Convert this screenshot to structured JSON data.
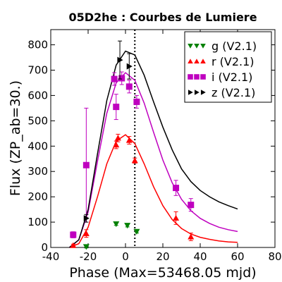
{
  "chart_data": {
    "type": "scatter",
    "title": "05D2he : Courbes de Lumiere",
    "xlabel": "Phase (Max=53468.05 mjd)",
    "ylabel": "Flux (ZP_ab=30.)",
    "xlim": [
      -40,
      80
    ],
    "ylim": [
      0,
      860
    ],
    "xticks": [
      "-40",
      "-20",
      "0",
      "20",
      "40",
      "60",
      "80"
    ],
    "yticks": [
      "0",
      "100",
      "200",
      "300",
      "400",
      "500",
      "600",
      "700",
      "800"
    ],
    "xtick_values": [
      -40,
      -20,
      0,
      20,
      40,
      60,
      80
    ],
    "ytick_values": [
      0,
      100,
      200,
      300,
      400,
      500,
      600,
      700,
      800
    ],
    "max_phase_line": 5,
    "legend_position": "top-right",
    "series": [
      {
        "name": "g (V2.1)",
        "legend_label": "g (V2.1)",
        "color": "#008000",
        "marker": "triangle-down",
        "points": [
          {
            "x": -21,
            "y": 3,
            "err": 5
          },
          {
            "x": -5,
            "y": 93,
            "err": 6
          },
          {
            "x": 1,
            "y": 87,
            "err": 6
          },
          {
            "x": 6,
            "y": 63,
            "err": 6
          }
        ],
        "curve": []
      },
      {
        "name": "r (V2.1)",
        "legend_label": "r (V2.1)",
        "color": "#ff0000",
        "marker": "triangle-up",
        "points": [
          {
            "x": -28,
            "y": 8,
            "err": 5
          },
          {
            "x": -21,
            "y": 55,
            "err": 15
          },
          {
            "x": -5,
            "y": 405,
            "err": 15
          },
          {
            "x": -4,
            "y": 432,
            "err": 15
          },
          {
            "x": 2,
            "y": 423,
            "err": 15
          },
          {
            "x": 5,
            "y": 343,
            "err": 10
          },
          {
            "x": 27,
            "y": 116,
            "err": 25
          },
          {
            "x": 35,
            "y": 42,
            "err": 15
          }
        ],
        "curve": [
          [
            -30,
            0
          ],
          [
            -25,
            15
          ],
          [
            -20,
            80
          ],
          [
            -15,
            200
          ],
          [
            -10,
            330
          ],
          [
            -5,
            420
          ],
          [
            0,
            445
          ],
          [
            5,
            410
          ],
          [
            10,
            330
          ],
          [
            15,
            240
          ],
          [
            20,
            165
          ],
          [
            25,
            110
          ],
          [
            30,
            75
          ],
          [
            35,
            53
          ],
          [
            40,
            40
          ],
          [
            45,
            32
          ],
          [
            50,
            26
          ],
          [
            55,
            22
          ],
          [
            60,
            20
          ]
        ]
      },
      {
        "name": "i (V2.1)",
        "legend_label": "i (V2.1)",
        "color": "#bf00bf",
        "marker": "square",
        "points": [
          {
            "x": -28,
            "y": 50,
            "err": 12
          },
          {
            "x": -21,
            "y": 325,
            "err": 225
          },
          {
            "x": -6,
            "y": 665,
            "err": 25
          },
          {
            "x": -5,
            "y": 555,
            "err": 50
          },
          {
            "x": -2,
            "y": 668,
            "err": 25
          },
          {
            "x": 2,
            "y": 635,
            "err": 25
          },
          {
            "x": 6,
            "y": 575,
            "err": 25
          },
          {
            "x": 27,
            "y": 235,
            "err": 30
          },
          {
            "x": 35,
            "y": 168,
            "err": 25
          }
        ],
        "curve": [
          [
            -30,
            0
          ],
          [
            -25,
            30
          ],
          [
            -20,
            140
          ],
          [
            -15,
            340
          ],
          [
            -10,
            530
          ],
          [
            -5,
            650
          ],
          [
            0,
            690
          ],
          [
            5,
            660
          ],
          [
            10,
            570
          ],
          [
            15,
            455
          ],
          [
            20,
            345
          ],
          [
            25,
            255
          ],
          [
            30,
            190
          ],
          [
            35,
            145
          ],
          [
            40,
            115
          ],
          [
            45,
            95
          ],
          [
            50,
            80
          ],
          [
            55,
            70
          ],
          [
            60,
            63
          ]
        ]
      },
      {
        "name": "z (V2.1)",
        "legend_label": "z (V2.1)",
        "color": "#000000",
        "marker": "triangle-right",
        "points": [
          {
            "x": -21,
            "y": 115,
            "err": 15
          },
          {
            "x": -3,
            "y": 740,
            "err": 75
          },
          {
            "x": 2,
            "y": 715,
            "err": 50
          }
        ],
        "curve": [
          [
            -30,
            0
          ],
          [
            -25,
            30
          ],
          [
            -20,
            150
          ],
          [
            -15,
            370
          ],
          [
            -10,
            580
          ],
          [
            -5,
            720
          ],
          [
            0,
            775
          ],
          [
            5,
            760
          ],
          [
            10,
            680
          ],
          [
            15,
            575
          ],
          [
            20,
            475
          ],
          [
            25,
            385
          ],
          [
            30,
            310
          ],
          [
            35,
            260
          ],
          [
            40,
            225
          ],
          [
            45,
            200
          ],
          [
            50,
            180
          ],
          [
            55,
            165
          ],
          [
            60,
            152
          ]
        ]
      }
    ]
  }
}
